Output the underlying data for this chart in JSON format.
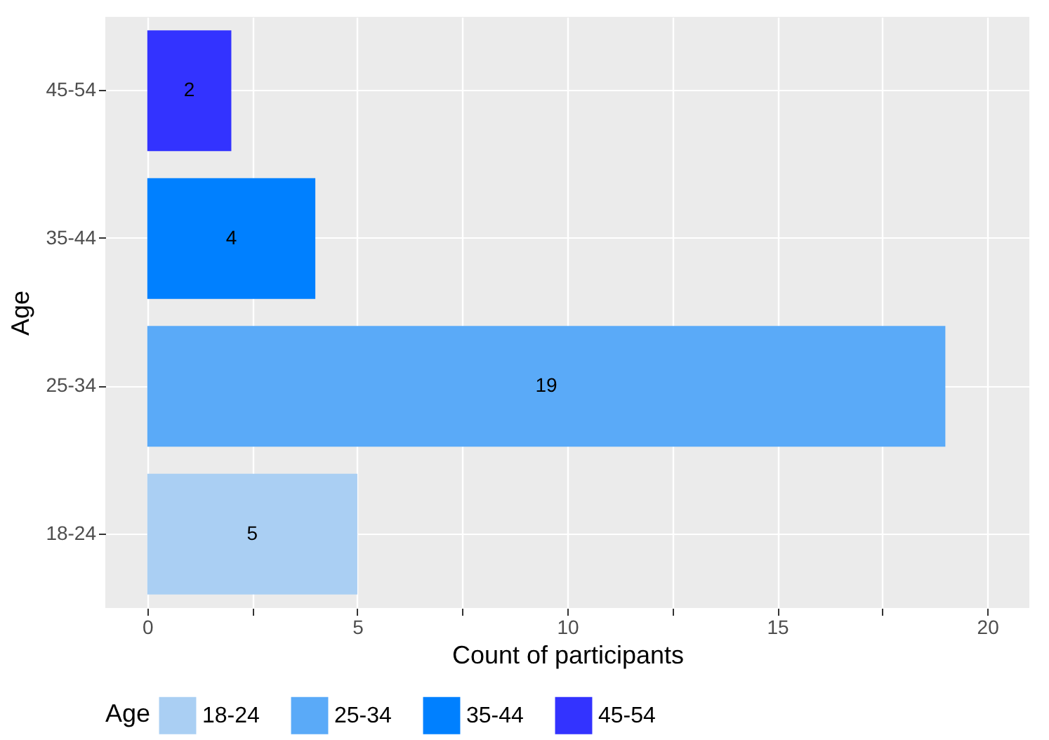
{
  "chart_data": {
    "type": "bar",
    "orientation": "horizontal",
    "stacked": true,
    "xlabel": "Count of participants",
    "ylabel": "Age",
    "legend_title": "Age",
    "categories": [
      "45-54",
      "35-44",
      "25-34",
      "18-24"
    ],
    "series": [
      {
        "name": "18-24",
        "color": "#aacff3",
        "values": [
          null,
          null,
          null,
          5
        ]
      },
      {
        "name": "25-34",
        "color": "#5aaaf8",
        "values": [
          null,
          null,
          19,
          null
        ]
      },
      {
        "name": "35-44",
        "color": "#0080ff",
        "values": [
          null,
          4,
          null,
          null
        ]
      },
      {
        "name": "45-54",
        "color": "#3333ff",
        "values": [
          2,
          null,
          null,
          null
        ]
      }
    ],
    "xlim": [
      -1,
      21
    ],
    "xticks": [
      0,
      {
        "value": 2.5,
        "label": null
      },
      5,
      {
        "value": 7.5,
        "label": null
      },
      10,
      {
        "value": 12.5,
        "label": null
      },
      15,
      {
        "value": 17.5,
        "label": null
      },
      20
    ],
    "grid": true,
    "legend": "bottom",
    "data_labels": true
  }
}
